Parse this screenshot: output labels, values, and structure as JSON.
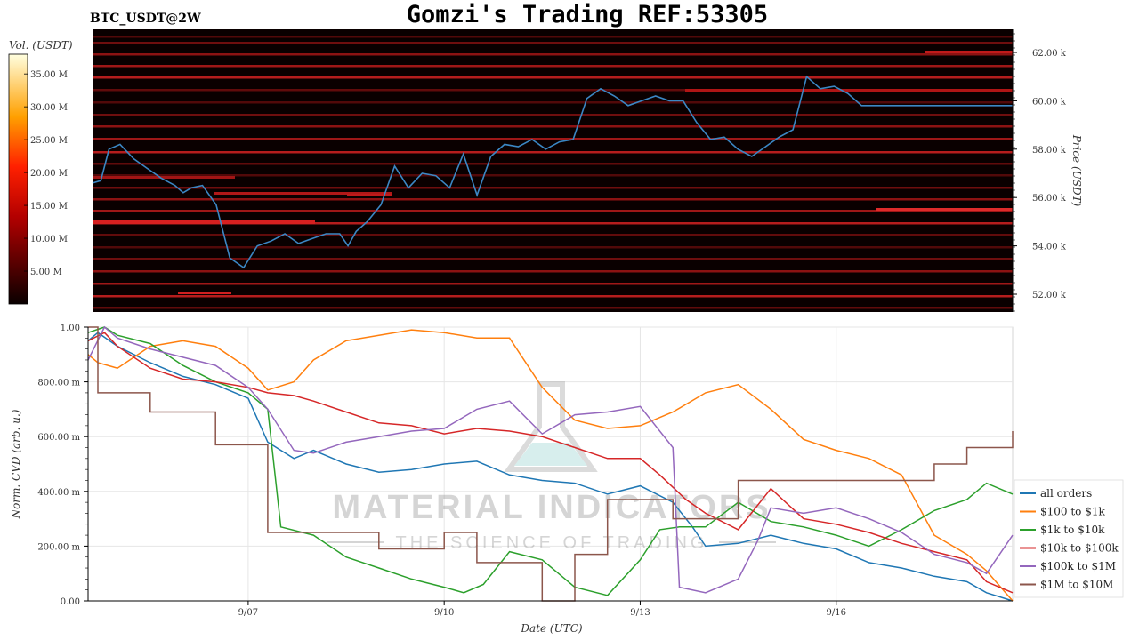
{
  "header": {
    "symbol": "BTC_USDT@2W",
    "title": "Gomzi's Trading REF:53305"
  },
  "watermark": {
    "brand": "MATERIAL INDICATORS",
    "tagline": "THE SCIENCE OF TRADING"
  },
  "colors": {
    "price_line": "#3b87c4",
    "heatmap_bg": "#0a0000",
    "all_orders": "#1f77b4",
    "100_to_1k": "#ff7f0e",
    "1k_to_10k": "#2ca02c",
    "10k_to_100k": "#d62728",
    "100k_to_1M": "#9467bd",
    "1M_to_10M": "#8c564b"
  },
  "chart_data": [
    {
      "type": "heatmap",
      "colorbar": {
        "label": "Vol. (USDT)",
        "ticks": [
          "35.00 M",
          "30.00 M",
          "25.00 M",
          "20.00 M",
          "15.00 M",
          "10.00 M",
          "5.00 M"
        ],
        "range": [
          0,
          38
        ]
      },
      "ylabel": "Price (USDT)",
      "yticks": [
        "62.00 k",
        "60.00 k",
        "58.00 k",
        "56.00 k",
        "54.00 k",
        "52.00 k"
      ],
      "ylim": [
        51000,
        62800
      ],
      "price_series": {
        "x": [
          0,
          0.3,
          0.6,
          1.0,
          1.5,
          2.0,
          2.5,
          3.0,
          3.3,
          3.6,
          4.0,
          4.5,
          5.0,
          5.5,
          6.0,
          6.5,
          7.0,
          7.5,
          8.0,
          8.5,
          9.0,
          9.3,
          9.6,
          10.0,
          10.5,
          11.0,
          11.5,
          12.0,
          12.5,
          13.0,
          13.5,
          14.0,
          14.5,
          15.0,
          15.5,
          16.0,
          16.5,
          17.0,
          17.5,
          18.0,
          18.5,
          19.0,
          19.5,
          20.0,
          20.5,
          21.0,
          21.5,
          22.0,
          22.5,
          23.0,
          23.5,
          24.0,
          24.5,
          25.0,
          25.5,
          26.0,
          26.5,
          27.0,
          27.5,
          28.0,
          28.5,
          29.0,
          29.5,
          30.0,
          30.5,
          31.0,
          31.5,
          32.0,
          32.5,
          33.0,
          33.5
        ],
        "y": [
          56600,
          56700,
          58000,
          58200,
          57600,
          57200,
          56800,
          56500,
          56200,
          56400,
          56500,
          55700,
          53500,
          53100,
          54000,
          54200,
          54500,
          54100,
          54300,
          54500,
          54500,
          54000,
          54600,
          55000,
          55700,
          57300,
          56400,
          57000,
          56900,
          56400,
          57800,
          56100,
          57700,
          58200,
          58100,
          58400,
          58000,
          58300,
          58400,
          60100,
          60500,
          60200,
          59800,
          60000,
          60200,
          60000,
          60000,
          59100,
          58400,
          58500,
          58000,
          57700,
          58100,
          58500,
          58800,
          61000,
          60500,
          60600,
          60300,
          59800,
          59800,
          59800,
          59800,
          59800,
          59800,
          59800,
          59800,
          59800,
          59800,
          59800,
          59800
        ]
      }
    },
    {
      "type": "line",
      "xlabel": "Date (UTC)",
      "ylabel": "Norm. CVD (arb. u.)",
      "x_ticks": [
        "9/07",
        "9/10",
        "9/13",
        "9/16"
      ],
      "x_tick_days": [
        6,
        9,
        12,
        15
      ],
      "x_range": [
        3.55,
        17.7
      ],
      "ylim": [
        0,
        1
      ],
      "y_ticks": [
        "0.00",
        "200.00 m",
        "400.00 m",
        "600.00 m",
        "800.00 m",
        "1.00"
      ],
      "legend_position": "bottom-right",
      "series": [
        {
          "name": "all orders",
          "color_key": "all_orders",
          "x": [
            3.55,
            3.7,
            4.0,
            4.5,
            5.0,
            5.5,
            6.0,
            6.3,
            6.7,
            7.0,
            7.5,
            8.0,
            8.5,
            9.0,
            9.5,
            10.0,
            10.5,
            11.0,
            11.5,
            12.0,
            12.5,
            12.8,
            13.0,
            13.5,
            14.0,
            14.5,
            15.0,
            15.5,
            16.0,
            16.5,
            17.0,
            17.3,
            17.7
          ],
          "y": [
            0.95,
            0.98,
            0.93,
            0.87,
            0.82,
            0.79,
            0.74,
            0.58,
            0.52,
            0.55,
            0.5,
            0.47,
            0.48,
            0.5,
            0.51,
            0.46,
            0.44,
            0.43,
            0.39,
            0.42,
            0.36,
            0.27,
            0.2,
            0.21,
            0.24,
            0.21,
            0.19,
            0.14,
            0.12,
            0.09,
            0.07,
            0.03,
            0.0
          ]
        },
        {
          "name": "$100 to $1k",
          "color_key": "100_to_1k",
          "x": [
            3.55,
            3.7,
            4.0,
            4.5,
            5.0,
            5.5,
            6.0,
            6.3,
            6.7,
            7.0,
            7.5,
            8.0,
            8.5,
            9.0,
            9.5,
            10.0,
            10.5,
            11.0,
            11.5,
            12.0,
            12.5,
            13.0,
            13.5,
            14.0,
            14.5,
            15.0,
            15.5,
            16.0,
            16.5,
            17.0,
            17.3,
            17.7
          ],
          "y": [
            0.9,
            0.87,
            0.85,
            0.93,
            0.95,
            0.93,
            0.85,
            0.77,
            0.8,
            0.88,
            0.95,
            0.97,
            0.99,
            0.98,
            0.96,
            0.96,
            0.78,
            0.66,
            0.63,
            0.64,
            0.69,
            0.76,
            0.79,
            0.7,
            0.59,
            0.55,
            0.52,
            0.46,
            0.24,
            0.17,
            0.11,
            0.0
          ]
        },
        {
          "name": "$1k to $10k",
          "color_key": "1k_to_10k",
          "x": [
            3.55,
            3.8,
            4.0,
            4.5,
            5.0,
            5.5,
            6.0,
            6.3,
            6.5,
            7.0,
            7.5,
            8.0,
            8.5,
            9.0,
            9.3,
            9.6,
            10.0,
            10.5,
            11.0,
            11.5,
            12.0,
            12.3,
            12.6,
            13.0,
            13.5,
            14.0,
            14.5,
            15.0,
            15.5,
            16.0,
            16.5,
            17.0,
            17.3,
            17.7
          ],
          "y": [
            0.98,
            1.0,
            0.97,
            0.94,
            0.86,
            0.8,
            0.76,
            0.7,
            0.27,
            0.24,
            0.16,
            0.12,
            0.08,
            0.05,
            0.03,
            0.06,
            0.18,
            0.15,
            0.05,
            0.02,
            0.15,
            0.26,
            0.27,
            0.27,
            0.36,
            0.29,
            0.27,
            0.24,
            0.2,
            0.26,
            0.33,
            0.37,
            0.43,
            0.39
          ]
        },
        {
          "name": "$10k to $100k",
          "color_key": "10k_to_100k",
          "x": [
            3.55,
            3.8,
            4.0,
            4.5,
            5.0,
            5.5,
            6.0,
            6.3,
            6.7,
            7.0,
            7.5,
            8.0,
            8.5,
            9.0,
            9.5,
            10.0,
            10.5,
            11.0,
            11.5,
            12.0,
            12.3,
            12.7,
            13.0,
            13.5,
            14.0,
            14.5,
            15.0,
            15.5,
            16.0,
            16.5,
            17.0,
            17.3,
            17.7
          ],
          "y": [
            0.95,
            0.98,
            0.93,
            0.85,
            0.81,
            0.8,
            0.78,
            0.76,
            0.75,
            0.73,
            0.69,
            0.65,
            0.64,
            0.61,
            0.63,
            0.62,
            0.6,
            0.56,
            0.52,
            0.52,
            0.46,
            0.37,
            0.32,
            0.26,
            0.41,
            0.3,
            0.28,
            0.25,
            0.21,
            0.18,
            0.15,
            0.07,
            0.03
          ]
        },
        {
          "name": "$100k to $1M",
          "color_key": "100k_to_1M",
          "x": [
            3.55,
            3.8,
            4.0,
            4.5,
            5.0,
            5.5,
            6.0,
            6.3,
            6.7,
            7.0,
            7.5,
            8.0,
            8.5,
            9.0,
            9.5,
            10.0,
            10.5,
            11.0,
            11.5,
            12.0,
            12.5,
            12.6,
            13.0,
            13.5,
            13.8,
            14.0,
            14.5,
            15.0,
            15.5,
            16.0,
            16.5,
            17.0,
            17.3,
            17.7
          ],
          "y": [
            0.88,
            1.0,
            0.96,
            0.92,
            0.89,
            0.86,
            0.78,
            0.7,
            0.55,
            0.54,
            0.58,
            0.6,
            0.62,
            0.63,
            0.7,
            0.73,
            0.61,
            0.68,
            0.69,
            0.71,
            0.56,
            0.05,
            0.03,
            0.08,
            0.22,
            0.34,
            0.32,
            0.34,
            0.3,
            0.25,
            0.17,
            0.14,
            0.1,
            0.24
          ]
        },
        {
          "name": "$1M to $10M",
          "color_key": "1M_to_10M",
          "step": true,
          "x": [
            3.55,
            3.7,
            4.0,
            4.5,
            5.0,
            5.5,
            6.0,
            6.3,
            6.5,
            7.0,
            7.5,
            8.0,
            8.5,
            9.0,
            9.5,
            10.0,
            10.5,
            11.0,
            11.5,
            12.0,
            12.5,
            13.0,
            13.5,
            14.0,
            14.5,
            15.0,
            15.5,
            16.0,
            16.5,
            17.0,
            17.3,
            17.7
          ],
          "y": [
            1.0,
            0.76,
            0.76,
            0.69,
            0.69,
            0.57,
            0.57,
            0.25,
            0.25,
            0.25,
            0.25,
            0.19,
            0.19,
            0.25,
            0.14,
            0.14,
            0.0,
            0.17,
            0.37,
            0.37,
            0.3,
            0.3,
            0.44,
            0.44,
            0.44,
            0.44,
            0.44,
            0.44,
            0.5,
            0.56,
            0.56,
            0.62
          ]
        }
      ]
    }
  ]
}
